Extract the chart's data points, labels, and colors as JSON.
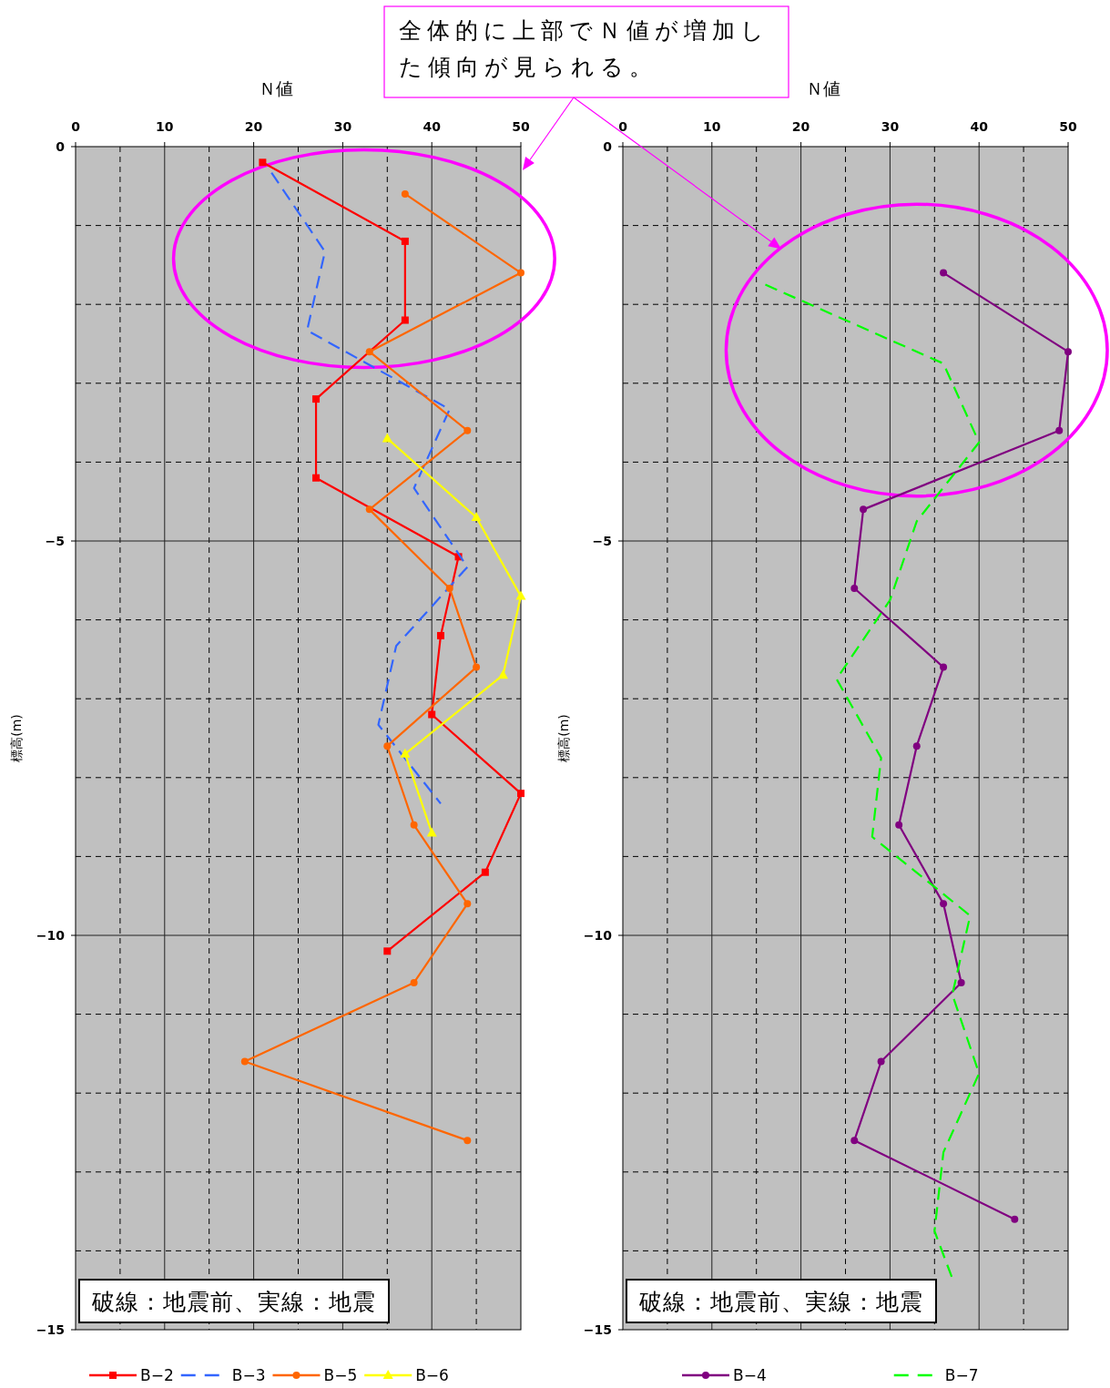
{
  "chart_data": [
    {
      "type": "line",
      "xlabel": "Ｎ値",
      "ylabel": "標高(m)",
      "xlim": [
        0,
        50
      ],
      "ylim": [
        -15,
        0
      ],
      "xticks": [
        0,
        {
          "value": 5,
          "label": null
        },
        10,
        {
          "value": 15,
          "label": null
        },
        20,
        {
          "value": 25,
          "label": null
        },
        30,
        {
          "value": 35,
          "label": null
        },
        40,
        {
          "value": 45,
          "label": null
        },
        50
      ],
      "yticks": [
        0,
        {
          "value": -1,
          "label": null
        },
        {
          "value": -2,
          "label": null
        },
        {
          "value": -3,
          "label": null
        },
        {
          "value": -4,
          "label": null
        },
        -5,
        {
          "value": -6,
          "label": null
        },
        {
          "value": -7,
          "label": null
        },
        {
          "value": -8,
          "label": null
        },
        {
          "value": -9,
          "label": null
        },
        -10,
        {
          "value": -11,
          "label": null
        },
        {
          "value": -12,
          "label": null
        },
        {
          "value": -13,
          "label": null
        },
        {
          "value": -14,
          "label": null
        },
        -15
      ],
      "grid": true,
      "legend": "bottom",
      "annotations": [
        "全体的に上部でＮ値が増加した傾向が見られる。",
        "破線：地震前、実線：地震"
      ],
      "series": [
        {
          "name": "B−2",
          "color": "#ff0000",
          "marker": "square",
          "line_style": "solid",
          "x": [
            21,
            37,
            37,
            27,
            27,
            43,
            41,
            40,
            50,
            46,
            35
          ],
          "values": [
            -0.2,
            -1.2,
            -2.2,
            -3.2,
            -4.2,
            -5.2,
            -6.2,
            -7.2,
            -8.2,
            -9.2,
            -10.2
          ]
        },
        {
          "name": "B−3",
          "color": "#3366ff",
          "marker": "none",
          "line_style": "dashed",
          "x": [
            22,
            28,
            26,
            42,
            38,
            44,
            36,
            34,
            41
          ],
          "values": [
            -0.33,
            -1.33,
            -2.33,
            -3.33,
            -4.33,
            -5.33,
            -6.33,
            -7.33,
            -8.33
          ]
        },
        {
          "name": "B−5",
          "color": "#ff6600",
          "marker": "circle",
          "line_style": "solid",
          "x": [
            37,
            50,
            33,
            44,
            33,
            42,
            45,
            35,
            38,
            44,
            38,
            19,
            44
          ],
          "values": [
            -0.6,
            -1.6,
            -2.6,
            -3.6,
            -4.6,
            -5.6,
            -6.6,
            -7.6,
            -8.6,
            -9.6,
            -10.6,
            -11.6,
            -12.6
          ]
        },
        {
          "name": "B−6",
          "color": "#ffff00",
          "marker": "triangle",
          "line_style": "solid",
          "x": [
            35,
            45,
            50,
            48,
            37,
            40
          ],
          "values": [
            -3.7,
            -4.7,
            -5.7,
            -6.7,
            -7.7,
            -8.7
          ]
        }
      ]
    },
    {
      "type": "line",
      "xlabel": "Ｎ値",
      "ylabel": "標高(m)",
      "xlim": [
        0,
        50
      ],
      "ylim": [
        -15,
        0
      ],
      "xticks": [
        0,
        {
          "value": 5,
          "label": null
        },
        10,
        {
          "value": 15,
          "label": null
        },
        20,
        {
          "value": 25,
          "label": null
        },
        30,
        {
          "value": 35,
          "label": null
        },
        40,
        {
          "value": 45,
          "label": null
        },
        50
      ],
      "yticks": [
        0,
        {
          "value": -1,
          "label": null
        },
        {
          "value": -2,
          "label": null
        },
        {
          "value": -3,
          "label": null
        },
        {
          "value": -4,
          "label": null
        },
        -5,
        {
          "value": -6,
          "label": null
        },
        {
          "value": -7,
          "label": null
        },
        {
          "value": -8,
          "label": null
        },
        {
          "value": -9,
          "label": null
        },
        -10,
        {
          "value": -11,
          "label": null
        },
        {
          "value": -12,
          "label": null
        },
        {
          "value": -13,
          "label": null
        },
        {
          "value": -14,
          "label": null
        },
        -15
      ],
      "grid": true,
      "legend": "bottom",
      "annotations": [
        "破線：地震前、実線：地震"
      ],
      "series": [
        {
          "name": "B−4",
          "color": "#800080",
          "marker": "circle",
          "line_style": "solid",
          "x": [
            36,
            50,
            49,
            27,
            26,
            36,
            33,
            31,
            36,
            38,
            29,
            26,
            44
          ],
          "values": [
            -1.6,
            -2.6,
            -3.6,
            -4.6,
            -5.6,
            -6.6,
            -7.6,
            -8.6,
            -9.6,
            -10.6,
            -11.6,
            -12.6,
            -13.6
          ]
        },
        {
          "name": "B−7",
          "color": "#00ff00",
          "marker": "none",
          "line_style": "dashed",
          "x": [
            16,
            36,
            40,
            33,
            30,
            24,
            29,
            28,
            39,
            37,
            40,
            36,
            35,
            37
          ],
          "values": [
            -1.75,
            -2.75,
            -3.75,
            -4.75,
            -5.75,
            -6.75,
            -7.75,
            -8.75,
            -9.75,
            -10.75,
            -11.75,
            -12.75,
            -13.75,
            -14.35
          ]
        }
      ]
    }
  ]
}
